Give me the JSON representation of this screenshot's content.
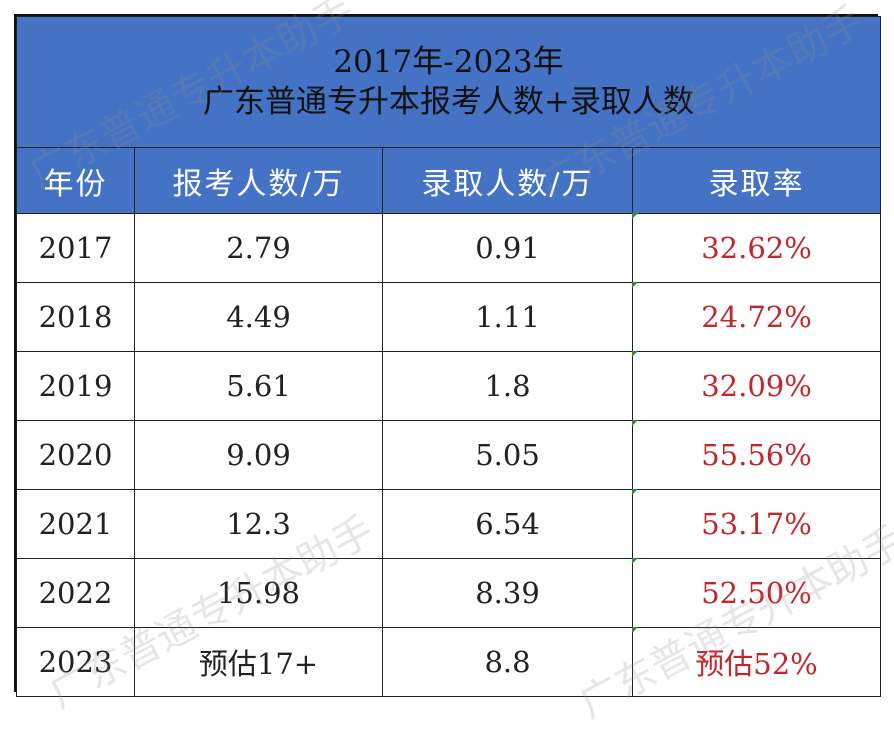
{
  "chart_data": {
    "type": "table",
    "title_line1": "2017年-2023年",
    "title_line2": "广东普通专升本报考人数+录取人数",
    "columns": [
      "年份",
      "报考人数/万",
      "录取人数/万",
      "录取率"
    ],
    "rows": [
      [
        "2017",
        "2.79",
        "0.91",
        "32.62%"
      ],
      [
        "2018",
        "4.49",
        "1.11",
        "24.72%"
      ],
      [
        "2019",
        "5.61",
        "1.8",
        "32.09%"
      ],
      [
        "2020",
        "9.09",
        "5.05",
        "55.56%"
      ],
      [
        "2021",
        "12.3",
        "6.54",
        "53.17%"
      ],
      [
        "2022",
        "15.98",
        "8.39",
        "52.50%"
      ],
      [
        "2023",
        "预估17+",
        "8.8",
        "预估52%"
      ]
    ],
    "colors": {
      "header_bg": "#4472C4",
      "rate_text": "#c0282d"
    }
  },
  "watermark": "广东普通专升本助手"
}
